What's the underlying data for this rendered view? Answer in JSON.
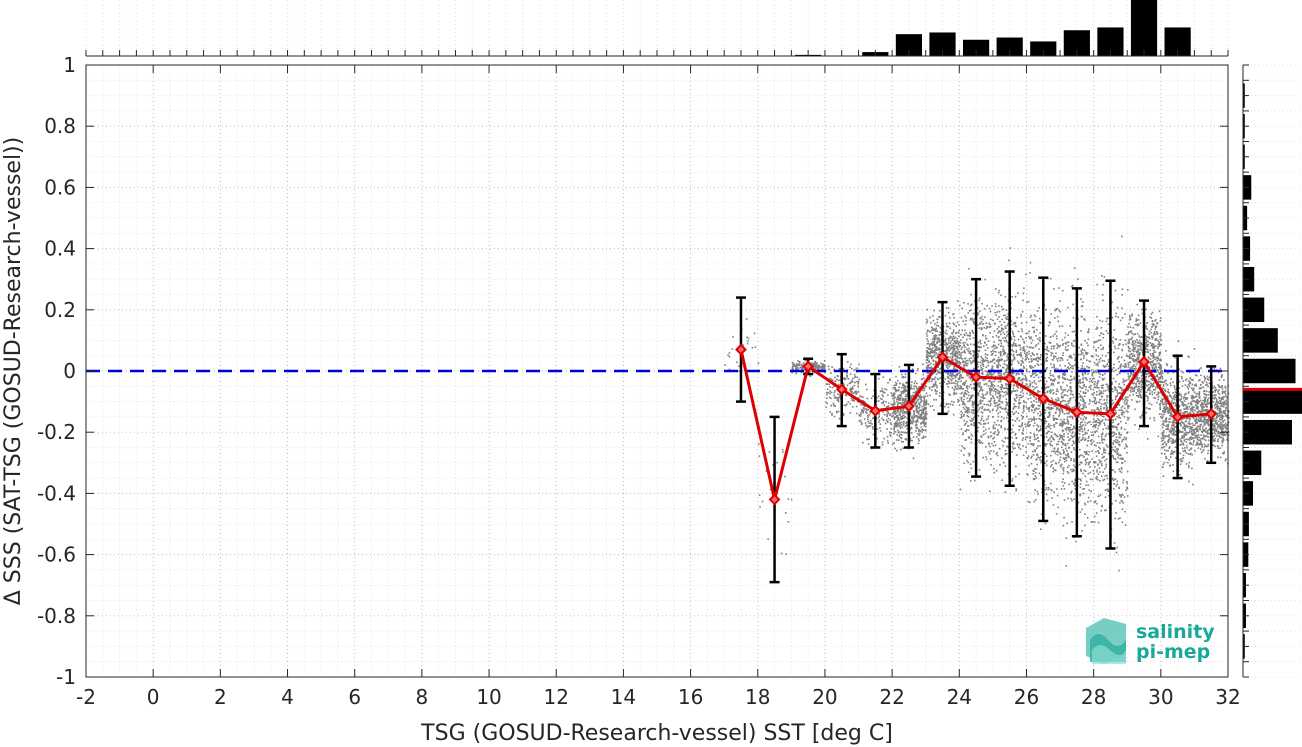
{
  "chart_data": {
    "type": "scatter",
    "xlabel": "TSG (GOSUD-Research-vessel) SST [deg C]",
    "ylabel": "Δ SSS (SAT-TSG (GOSUD-Research-vessel))",
    "xlim": [
      -2,
      32
    ],
    "ylim": [
      -1,
      1
    ],
    "x_ticks": [
      -2,
      0,
      2,
      4,
      6,
      8,
      10,
      12,
      14,
      16,
      18,
      20,
      22,
      24,
      26,
      28,
      30,
      32
    ],
    "y_ticks": [
      1,
      0.8,
      0.6,
      0.4,
      0.2,
      0,
      -0.2,
      -0.4,
      -0.6,
      -0.8,
      -1
    ],
    "grid": "dotted minor and major",
    "reference_line": {
      "y": 0,
      "style": "dashed",
      "color": "#0000dd"
    },
    "binned_mean": {
      "color": "#dd0000",
      "x": [
        17.5,
        18.5,
        19.5,
        20.5,
        21.5,
        22.5,
        23.5,
        24.5,
        25.5,
        26.5,
        27.5,
        28.5,
        29.5,
        30.5,
        31.5
      ],
      "y": [
        0.07,
        -0.42,
        0.015,
        -0.06,
        -0.13,
        -0.115,
        0.045,
        -0.02,
        -0.025,
        -0.09,
        -0.135,
        -0.14,
        0.03,
        -0.15,
        -0.14
      ],
      "lower": [
        -0.1,
        -0.69,
        -0.01,
        -0.18,
        -0.25,
        -0.25,
        -0.14,
        -0.345,
        -0.375,
        -0.49,
        -0.54,
        -0.58,
        -0.18,
        -0.35,
        -0.3
      ],
      "upper": [
        0.24,
        -0.15,
        0.04,
        0.055,
        -0.01,
        0.02,
        0.225,
        0.3,
        0.325,
        0.305,
        0.27,
        0.295,
        0.23,
        0.05,
        0.015
      ]
    },
    "scatter_color": "#808080",
    "top_histogram": {
      "bin_centers": [
        19.5,
        20.5,
        21.5,
        22.5,
        23.5,
        24.5,
        25.5,
        26.5,
        27.5,
        28.5,
        29.5,
        30.5
      ],
      "relative_counts": [
        0.02,
        0.0,
        0.07,
        0.39,
        0.42,
        0.29,
        0.33,
        0.26,
        0.46,
        0.51,
        1.0,
        0.51
      ]
    },
    "right_histogram": {
      "bin_centers": [
        0.9,
        0.8,
        0.7,
        0.6,
        0.5,
        0.4,
        0.3,
        0.2,
        0.1,
        0.0,
        -0.1,
        -0.2,
        -0.3,
        -0.4,
        -0.5,
        -0.6,
        -0.7,
        -0.8,
        -0.9
      ],
      "relative_counts": [
        0.03,
        0.03,
        0.03,
        0.14,
        0.07,
        0.12,
        0.19,
        0.36,
        0.59,
        0.89,
        1.0,
        0.83,
        0.31,
        0.17,
        0.1,
        0.09,
        0.05,
        0.05,
        0.03
      ],
      "mean_marker": {
        "y": -0.06,
        "color": "#dd0000"
      }
    }
  },
  "logo": {
    "line1": "salinity",
    "line2": "pi-mep",
    "color": "#1aa89a"
  }
}
